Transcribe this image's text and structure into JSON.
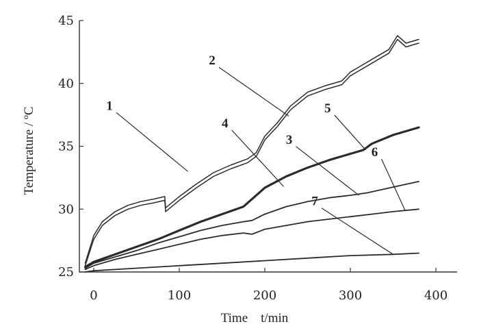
{
  "chart_data": {
    "type": "line",
    "xlabel": "Time    t/min",
    "ylabel": "Temperature / ºC",
    "xlim": [
      -10,
      390
    ],
    "ylim": [
      25,
      45
    ],
    "xticks": [
      0,
      100,
      200,
      300,
      400
    ],
    "yticks": [
      25,
      30,
      35,
      40,
      45
    ],
    "xtick_labels": [
      "0",
      "100",
      "200",
      "300",
      "400"
    ],
    "ytick_labels": [
      "25",
      "30",
      "35",
      "40",
      "45"
    ],
    "grid": false,
    "series": [
      {
        "name": "1",
        "style": "double",
        "x": [
          -10,
          0,
          10,
          25,
          40,
          55,
          70,
          83,
          84,
          100,
          120,
          140,
          160,
          180,
          190,
          200,
          215,
          230,
          250,
          270,
          290,
          300,
          310,
          330,
          345,
          355,
          365,
          380
        ],
        "y": [
          25.5,
          27.6,
          28.7,
          29.5,
          30.0,
          30.3,
          30.5,
          30.7,
          29.8,
          30.7,
          31.7,
          32.6,
          33.2,
          33.7,
          34.2,
          35.5,
          36.6,
          37.9,
          39.0,
          39.5,
          39.9,
          40.6,
          41.0,
          41.8,
          42.4,
          43.5,
          42.9,
          43.2
        ]
      },
      {
        "name": "2",
        "style": "double",
        "x": [
          -10,
          0,
          10,
          25,
          40,
          55,
          70,
          83,
          84,
          100,
          120,
          140,
          160,
          180,
          190,
          200,
          215,
          230,
          250,
          270,
          290,
          300,
          310,
          330,
          345,
          355,
          365,
          380
        ],
        "y": [
          25.7,
          27.9,
          29.0,
          29.8,
          30.3,
          30.6,
          30.8,
          31.0,
          30.1,
          31.0,
          32.0,
          32.9,
          33.5,
          34.0,
          34.5,
          35.8,
          36.9,
          38.2,
          39.3,
          39.8,
          40.2,
          40.9,
          41.3,
          42.1,
          42.7,
          43.8,
          43.2,
          43.5
        ]
      },
      {
        "name": "5",
        "style": "bold",
        "x": [
          -10,
          0,
          25,
          50,
          75,
          100,
          125,
          150,
          175,
          185,
          200,
          225,
          250,
          275,
          300,
          315,
          325,
          350,
          380
        ],
        "y": [
          25.4,
          25.8,
          26.4,
          27.0,
          27.6,
          28.3,
          29.0,
          29.6,
          30.2,
          30.8,
          31.7,
          32.6,
          33.3,
          33.9,
          34.4,
          34.7,
          35.2,
          35.9,
          36.5
        ]
      },
      {
        "name": "3",
        "style": "normal",
        "x": [
          -10,
          0,
          25,
          50,
          75,
          100,
          125,
          150,
          175,
          185,
          200,
          225,
          250,
          275,
          300,
          320,
          340,
          360,
          380
        ],
        "y": [
          25.3,
          25.7,
          26.2,
          26.7,
          27.3,
          27.8,
          28.3,
          28.7,
          29.0,
          29.1,
          29.6,
          30.2,
          30.6,
          30.9,
          31.1,
          31.3,
          31.6,
          31.9,
          32.2
        ]
      },
      {
        "name": "4",
        "style": "normal",
        "x": [
          -10,
          0,
          25,
          50,
          75,
          100,
          125,
          150,
          175,
          185,
          200,
          225,
          250,
          275,
          300,
          325,
          350,
          380
        ],
        "y": [
          25.2,
          25.5,
          26.0,
          26.4,
          26.8,
          27.2,
          27.6,
          27.9,
          28.1,
          28.0,
          28.4,
          28.7,
          29.0,
          29.2,
          29.4,
          29.6,
          29.8,
          30.0
        ]
      },
      {
        "name": "6",
        "style": "normal",
        "x": [
          -10,
          0,
          50,
          100,
          150,
          200,
          250,
          300,
          350,
          380
        ],
        "y": [
          25.0,
          25.1,
          25.3,
          25.5,
          25.7,
          25.9,
          26.1,
          26.3,
          26.4,
          26.5
        ]
      }
    ],
    "annotations": [
      {
        "text": "1",
        "x": 20,
        "y": 37.9,
        "to_x": 110,
        "to_y": 33.0
      },
      {
        "text": "2",
        "x": 140,
        "y": 41.5,
        "to_x": 228,
        "to_y": 37.4
      },
      {
        "text": "4",
        "x": 155,
        "y": 36.5,
        "to_x": 222,
        "to_y": 31.8
      },
      {
        "text": "5",
        "x": 275,
        "y": 37.7,
        "to_x": 318,
        "to_y": 34.7
      },
      {
        "text": "3",
        "x": 230,
        "y": 35.2,
        "to_x": 310,
        "to_y": 31.1
      },
      {
        "text": "6",
        "x": 330,
        "y": 34.2,
        "to_x": 364,
        "to_y": 29.9
      },
      {
        "text": "7",
        "x": 260,
        "y": 30.3,
        "to_x": 350,
        "to_y": 26.4
      }
    ]
  }
}
